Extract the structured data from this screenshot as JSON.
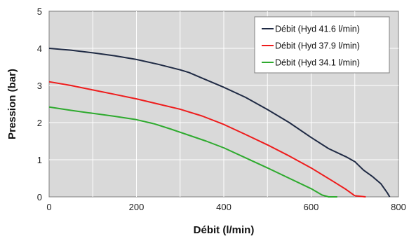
{
  "chart_data": {
    "type": "line",
    "xlabel": "Débit (l/min)",
    "ylabel": "Pression (bar)",
    "xlim": [
      0,
      800
    ],
    "ylim": [
      0,
      5
    ],
    "x_ticks": [
      "0",
      "200",
      "400",
      "600",
      "800"
    ],
    "y_ticks": [
      "0",
      "1",
      "2",
      "3",
      "4",
      "5"
    ],
    "grid": true,
    "legend_position": "top-right",
    "series": [
      {
        "name": "Débit (Hyd 41.6 l/min)",
        "color": "#1f2a44",
        "points": [
          [
            0,
            4.0
          ],
          [
            50,
            3.95
          ],
          [
            100,
            3.88
          ],
          [
            150,
            3.8
          ],
          [
            200,
            3.7
          ],
          [
            250,
            3.57
          ],
          [
            300,
            3.42
          ],
          [
            320,
            3.35
          ],
          [
            350,
            3.2
          ],
          [
            400,
            2.95
          ],
          [
            450,
            2.68
          ],
          [
            500,
            2.35
          ],
          [
            550,
            2.0
          ],
          [
            600,
            1.6
          ],
          [
            640,
            1.3
          ],
          [
            680,
            1.08
          ],
          [
            700,
            0.95
          ],
          [
            720,
            0.72
          ],
          [
            740,
            0.55
          ],
          [
            760,
            0.35
          ],
          [
            775,
            0.1
          ],
          [
            780,
            0.0
          ]
        ]
      },
      {
        "name": "Débit (Hyd 37.9 l/min)",
        "color": "#ee1c1c",
        "points": [
          [
            0,
            3.1
          ],
          [
            50,
            3.0
          ],
          [
            100,
            2.88
          ],
          [
            150,
            2.76
          ],
          [
            200,
            2.64
          ],
          [
            250,
            2.5
          ],
          [
            300,
            2.36
          ],
          [
            350,
            2.18
          ],
          [
            400,
            1.95
          ],
          [
            450,
            1.68
          ],
          [
            500,
            1.4
          ],
          [
            550,
            1.1
          ],
          [
            600,
            0.78
          ],
          [
            650,
            0.42
          ],
          [
            680,
            0.2
          ],
          [
            700,
            0.03
          ],
          [
            725,
            0.0
          ]
        ]
      },
      {
        "name": "Débit (Hyd 34.1 l/min)",
        "color": "#2eaa2e",
        "points": [
          [
            0,
            2.42
          ],
          [
            50,
            2.33
          ],
          [
            100,
            2.25
          ],
          [
            150,
            2.17
          ],
          [
            200,
            2.08
          ],
          [
            240,
            1.97
          ],
          [
            280,
            1.82
          ],
          [
            320,
            1.66
          ],
          [
            360,
            1.5
          ],
          [
            400,
            1.32
          ],
          [
            450,
            1.05
          ],
          [
            500,
            0.78
          ],
          [
            550,
            0.5
          ],
          [
            600,
            0.22
          ],
          [
            625,
            0.05
          ],
          [
            640,
            0.0
          ],
          [
            660,
            0.0
          ]
        ]
      }
    ]
  }
}
